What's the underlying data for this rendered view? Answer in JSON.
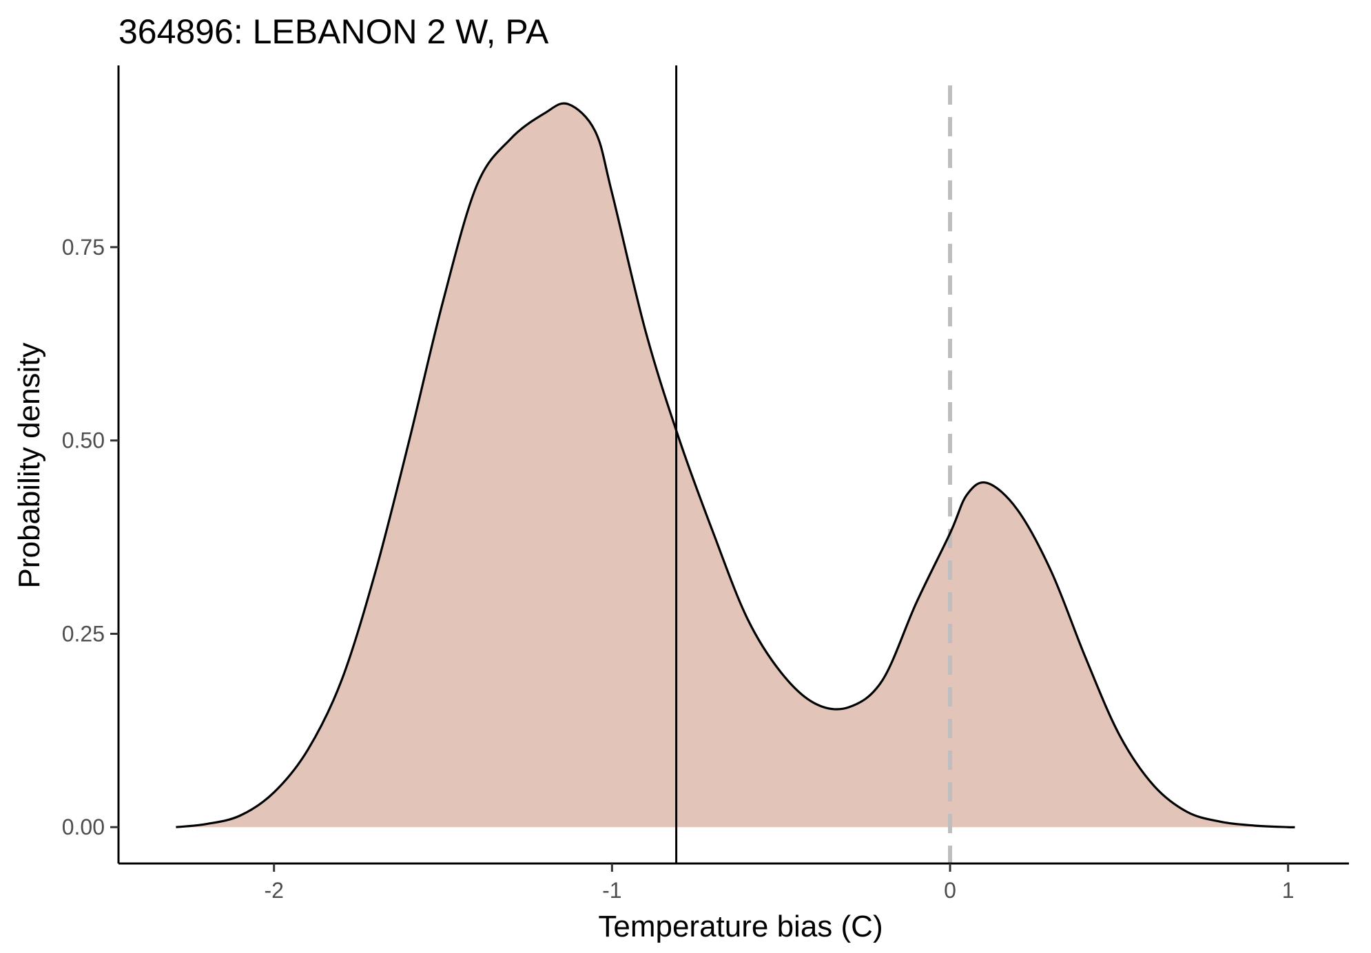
{
  "chart_data": {
    "type": "area",
    "title": "364896: LEBANON 2 W, PA",
    "xlabel": "Temperature bias (C)",
    "ylabel": "Probability density",
    "xlim": [
      -2.46,
      1.18
    ],
    "ylim": [
      -0.047,
      0.985
    ],
    "x_ticks": [
      {
        "value": -2,
        "label": "-2"
      },
      {
        "value": -1,
        "label": "-1"
      },
      {
        "value": 0,
        "label": "0"
      },
      {
        "value": 1,
        "label": "1"
      }
    ],
    "y_ticks": [
      {
        "value": 0.0,
        "label": "0.00"
      },
      {
        "value": 0.25,
        "label": "0.25"
      },
      {
        "value": 0.5,
        "label": "0.50"
      },
      {
        "value": 0.75,
        "label": "0.75"
      }
    ],
    "grid": false,
    "fill_color": "#e3c4b9",
    "line_color": "#000000",
    "density": {
      "x": [
        -2.29,
        -2.2,
        -2.1,
        -2.0,
        -1.9,
        -1.8,
        -1.7,
        -1.6,
        -1.5,
        -1.4,
        -1.3,
        -1.2,
        -1.13,
        -1.05,
        -1.0,
        -0.9,
        -0.8,
        -0.7,
        -0.6,
        -0.5,
        -0.4,
        -0.3,
        -0.2,
        -0.1,
        0.0,
        0.05,
        0.11,
        0.2,
        0.3,
        0.4,
        0.5,
        0.6,
        0.7,
        0.8,
        0.9,
        1.0,
        1.02
      ],
      "y": [
        0.0,
        0.004,
        0.015,
        0.045,
        0.1,
        0.19,
        0.33,
        0.5,
        0.68,
        0.83,
        0.89,
        0.923,
        0.935,
        0.9,
        0.82,
        0.64,
        0.5,
        0.38,
        0.27,
        0.2,
        0.16,
        0.155,
        0.19,
        0.29,
        0.38,
        0.43,
        0.445,
        0.41,
        0.33,
        0.22,
        0.12,
        0.055,
        0.02,
        0.007,
        0.002,
        0.0,
        0.0
      ]
    },
    "mean_line": {
      "x": -0.81,
      "style": "solid",
      "color": "#000000"
    },
    "reference_line": {
      "x": 0,
      "style": "dashed",
      "color": "#bebebe"
    }
  }
}
